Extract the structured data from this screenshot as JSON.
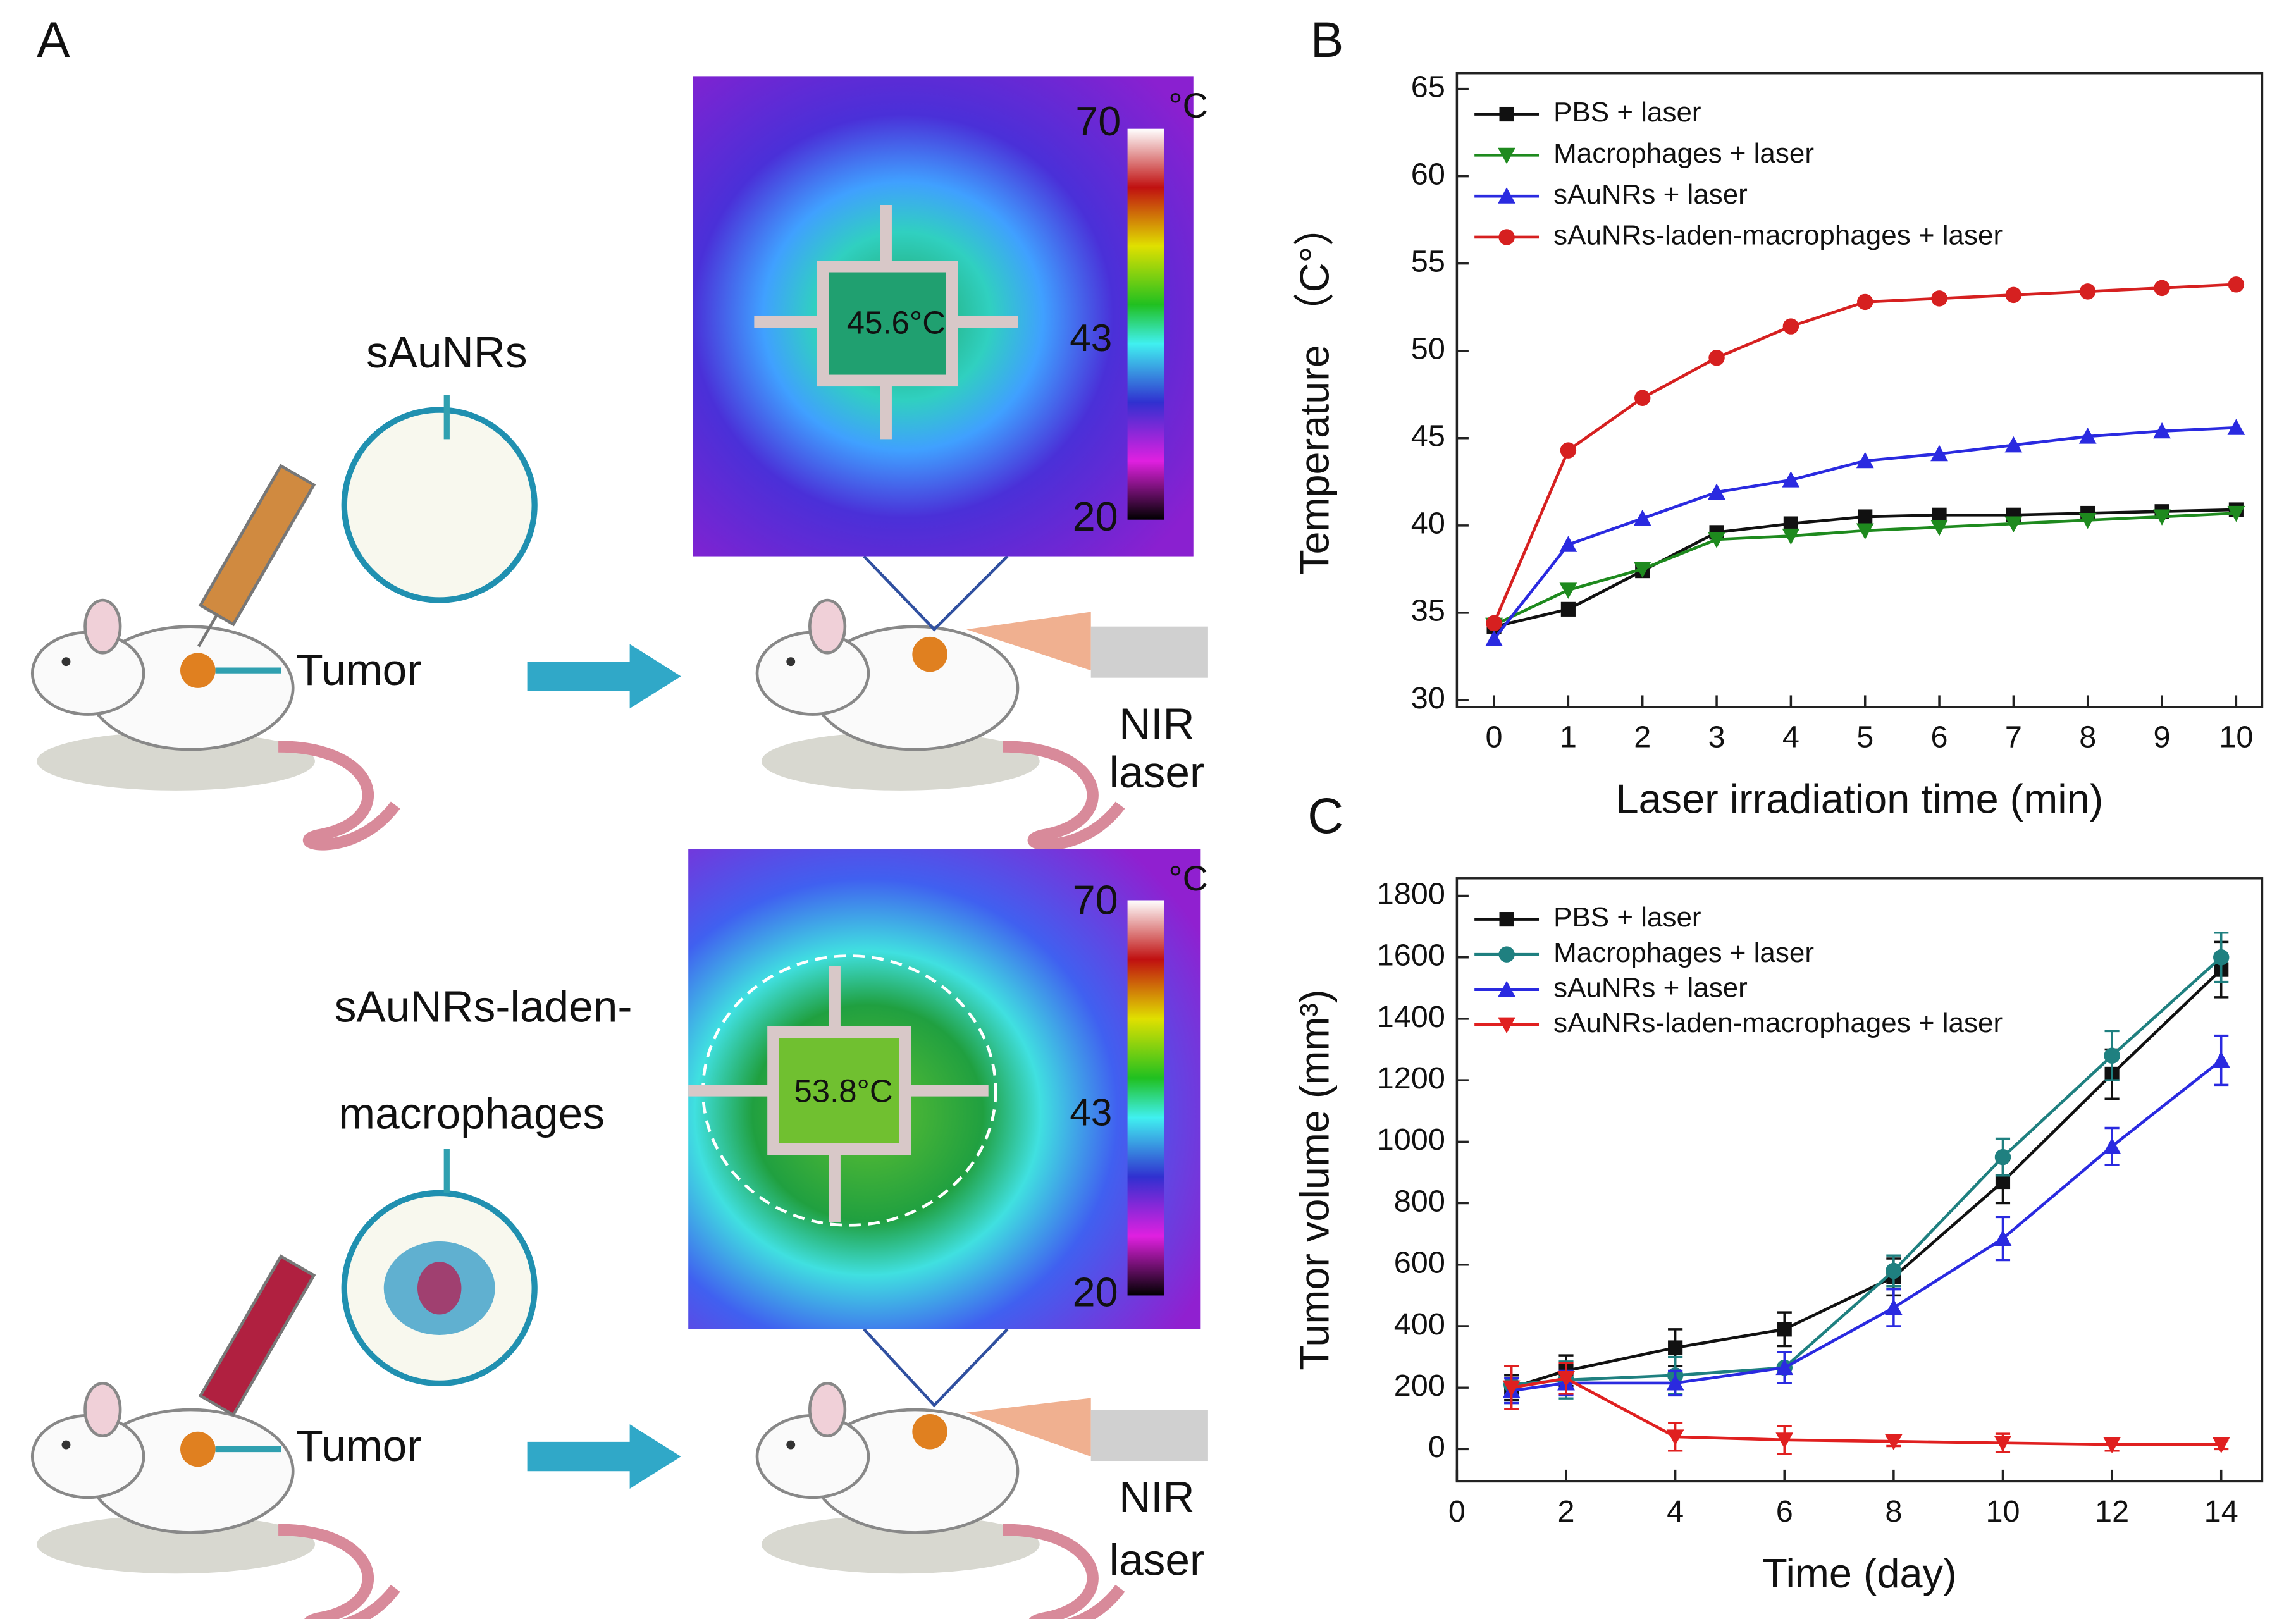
{
  "panel_a": {
    "label": "A",
    "top": {
      "agent": [
        "sAuNRs"
      ],
      "tumor": "Tumor",
      "laser": [
        "NIR",
        "laser"
      ],
      "scale": {
        "max": "70",
        "unit": "°C",
        "mid": "43",
        "min": "20"
      },
      "reading": "45.6°C"
    },
    "bottom": {
      "agent": [
        "sAuNRs-laden-",
        "macrophages"
      ],
      "tumor": "Tumor",
      "laser": [
        "NIR",
        "laser"
      ],
      "scale": {
        "max": "70",
        "unit": "°C",
        "mid": "43",
        "min": "20"
      },
      "reading": "53.8°C"
    }
  },
  "chart_data": [
    {
      "type": "line",
      "label": "B",
      "x_label": "Laser irradiation time (min)",
      "y_label": "Temperature （C°）",
      "x": [
        0,
        1,
        2,
        3,
        4,
        5,
        6,
        7,
        8,
        9,
        10
      ],
      "xlim": [
        -0.5,
        10.35
      ],
      "xticks": [
        0,
        1,
        2,
        3,
        4,
        5,
        6,
        7,
        8,
        9,
        10
      ],
      "ylim": [
        29.6,
        65.9
      ],
      "yticks": [
        30,
        35,
        40,
        45,
        50,
        55,
        60,
        65
      ],
      "legend": "upper left",
      "series": [
        {
          "name": "PBS + laser",
          "color": "#111111",
          "marker": "square",
          "values": [
            34.2,
            35.2,
            37.4,
            39.6,
            40.1,
            40.5,
            40.6,
            40.6,
            40.7,
            40.8,
            40.9
          ]
        },
        {
          "name": "Macrophages + laser",
          "color": "#1e8a1e",
          "marker": "triangle-down",
          "values": [
            34.3,
            36.3,
            37.5,
            39.2,
            39.4,
            39.7,
            39.9,
            40.1,
            40.3,
            40.5,
            40.7
          ]
        },
        {
          "name": "sAuNRs + laser",
          "color": "#2a2ae0",
          "marker": "triangle-up",
          "values": [
            33.5,
            38.9,
            40.4,
            41.9,
            42.6,
            43.7,
            44.1,
            44.6,
            45.1,
            45.4,
            45.6
          ]
        },
        {
          "name": "sAuNRs-laden-macrophages + laser",
          "color": "#d62020",
          "marker": "circle",
          "values": [
            34.4,
            44.3,
            47.3,
            49.6,
            51.4,
            52.8,
            53.0,
            53.2,
            53.4,
            53.6,
            53.8
          ]
        }
      ]
    },
    {
      "type": "line",
      "label": "C",
      "x_label": "Time (day)",
      "y_label": "Tumor volume (mm³)",
      "x": [
        1,
        2,
        4,
        6,
        8,
        10,
        12,
        14
      ],
      "xlim": [
        0,
        14.75
      ],
      "xticks": [
        0,
        2,
        4,
        6,
        8,
        10,
        12,
        14
      ],
      "ylim": [
        -105,
        1857
      ],
      "yticks": [
        0,
        200,
        400,
        600,
        800,
        1000,
        1200,
        1400,
        1600,
        1800
      ],
      "legend": "upper left",
      "series": [
        {
          "name": "PBS + laser",
          "color": "#111111",
          "marker": "square",
          "values": [
            200,
            255,
            330,
            390,
            560,
            870,
            1220,
            1560
          ],
          "errors": [
            40,
            50,
            60,
            55,
            60,
            70,
            80,
            90
          ]
        },
        {
          "name": "Macrophages + laser",
          "color": "#1f8080",
          "marker": "circle",
          "values": [
            210,
            225,
            240,
            265,
            580,
            950,
            1280,
            1600
          ],
          "errors": [
            60,
            60,
            60,
            50,
            50,
            60,
            80,
            80
          ]
        },
        {
          "name": "sAuNRs + laser",
          "color": "#2a2ae0",
          "marker": "triangle-up",
          "values": [
            190,
            215,
            215,
            265,
            460,
            685,
            985,
            1265
          ],
          "errors": [
            40,
            40,
            40,
            50,
            60,
            70,
            60,
            80
          ]
        },
        {
          "name": "sAuNRs-laden-macrophages + laser",
          "color": "#e02020",
          "marker": "triangle-down",
          "values": [
            200,
            230,
            40,
            30,
            25,
            20,
            15,
            15
          ],
          "errors": [
            70,
            50,
            45,
            45,
            15,
            30,
            20,
            15
          ]
        }
      ]
    }
  ]
}
